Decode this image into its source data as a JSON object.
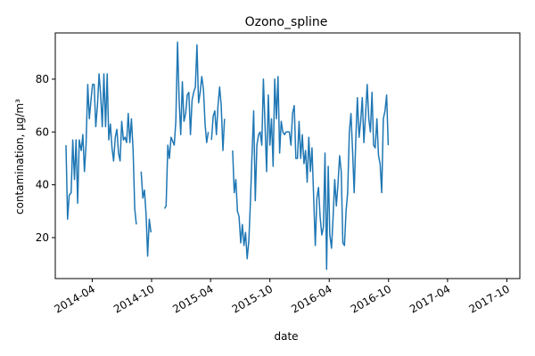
{
  "chart_data": {
    "type": "line",
    "title": "Ozono_spline",
    "xlabel": "date",
    "ylabel": "contamination, µg/m³",
    "xlim": [
      "2013-12-08",
      "2017-11-10"
    ],
    "ylim": [
      4.5,
      97.5
    ],
    "xticks": [
      {
        "date": "2014-04-01",
        "label": "2014-04"
      },
      {
        "date": "2014-10-01",
        "label": "2014-10"
      },
      {
        "date": "2015-04-01",
        "label": "2015-04"
      },
      {
        "date": "2015-10-01",
        "label": "2015-10"
      },
      {
        "date": "2016-04-01",
        "label": "2016-04"
      },
      {
        "date": "2016-10-01",
        "label": "2016-10"
      },
      {
        "date": "2017-04-01",
        "label": "2017-04"
      },
      {
        "date": "2017-10-01",
        "label": "2017-10"
      }
    ],
    "yticks": [
      20,
      40,
      60,
      80
    ],
    "grid": false,
    "line_color": "#1f77b4",
    "series": [
      {
        "segments": [
          [
            [
              "2014-01-10",
              55
            ],
            [
              "2014-01-15",
              27
            ],
            [
              "2014-01-20",
              36
            ],
            [
              "2014-01-26",
              37
            ],
            [
              "2014-01-31",
              57
            ],
            [
              "2014-02-05",
              42
            ],
            [
              "2014-02-10",
              57
            ],
            [
              "2014-02-15",
              33
            ],
            [
              "2014-02-20",
              57
            ],
            [
              "2014-02-26",
              53
            ],
            [
              "2014-03-03",
              59
            ],
            [
              "2014-03-08",
              45
            ],
            [
              "2014-03-13",
              55
            ],
            [
              "2014-03-18",
              78
            ],
            [
              "2014-03-23",
              65
            ],
            [
              "2014-03-28",
              72
            ],
            [
              "2014-04-02",
              78
            ],
            [
              "2014-04-07",
              78
            ],
            [
              "2014-04-12",
              62
            ],
            [
              "2014-04-17",
              70
            ],
            [
              "2014-04-22",
              82
            ],
            [
              "2014-04-27",
              74
            ],
            [
              "2014-05-02",
              62
            ],
            [
              "2014-05-07",
              82
            ],
            [
              "2014-05-12",
              62
            ],
            [
              "2014-05-17",
              82
            ],
            [
              "2014-05-22",
              57
            ],
            [
              "2014-05-27",
              63
            ],
            [
              "2014-06-01",
              54
            ],
            [
              "2014-06-06",
              49
            ],
            [
              "2014-06-11",
              58
            ],
            [
              "2014-06-16",
              61
            ],
            [
              "2014-06-21",
              52
            ],
            [
              "2014-06-26",
              49
            ],
            [
              "2014-07-01",
              64
            ],
            [
              "2014-07-06",
              57
            ],
            [
              "2014-07-11",
              58
            ],
            [
              "2014-07-16",
              56
            ],
            [
              "2014-07-21",
              67
            ],
            [
              "2014-07-26",
              56
            ],
            [
              "2014-07-31",
              65
            ],
            [
              "2014-08-05",
              53
            ],
            [
              "2014-08-10",
              31
            ],
            [
              "2014-08-15",
              25
            ]
          ],
          [
            [
              "2014-08-30",
              45
            ],
            [
              "2014-09-04",
              35
            ],
            [
              "2014-09-09",
              38
            ],
            [
              "2014-09-14",
              29
            ],
            [
              "2014-09-19",
              13
            ],
            [
              "2014-09-24",
              27
            ],
            [
              "2014-09-29",
              22
            ]
          ],
          [
            [
              "2014-11-10",
              31
            ],
            [
              "2014-11-15",
              32
            ],
            [
              "2014-11-20",
              55
            ],
            [
              "2014-11-25",
              50
            ],
            [
              "2014-11-30",
              58
            ],
            [
              "2014-12-10",
              55
            ],
            [
              "2014-12-15",
              64
            ],
            [
              "2014-12-20",
              94
            ],
            [
              "2014-12-25",
              72
            ],
            [
              "2014-12-30",
              59
            ],
            [
              "2015-01-04",
              79
            ],
            [
              "2015-01-09",
              64
            ],
            [
              "2015-01-14",
              67
            ],
            [
              "2015-01-19",
              74
            ],
            [
              "2015-01-24",
              75
            ],
            [
              "2015-01-29",
              59
            ],
            [
              "2015-02-03",
              72
            ],
            [
              "2015-02-08",
              75
            ],
            [
              "2015-02-13",
              77
            ],
            [
              "2015-02-18",
              93
            ],
            [
              "2015-02-23",
              71
            ],
            [
              "2015-02-28",
              75
            ],
            [
              "2015-03-05",
              81
            ],
            [
              "2015-03-10",
              76
            ],
            [
              "2015-03-15",
              63
            ],
            [
              "2015-03-20",
              56
            ],
            [
              "2015-03-25",
              60
            ]
          ],
          [
            [
              "2015-04-04",
              57
            ],
            [
              "2015-04-09",
              66
            ],
            [
              "2015-04-14",
              68
            ],
            [
              "2015-04-19",
              59
            ],
            [
              "2015-04-24",
              70
            ],
            [
              "2015-04-29",
              77
            ],
            [
              "2015-05-04",
              70
            ],
            [
              "2015-05-09",
              53
            ],
            [
              "2015-05-14",
              65
            ]
          ],
          [
            [
              "2015-06-08",
              53
            ],
            [
              "2015-06-13",
              37
            ],
            [
              "2015-06-18",
              42
            ],
            [
              "2015-06-23",
              30
            ],
            [
              "2015-06-28",
              28
            ],
            [
              "2015-07-03",
              18
            ],
            [
              "2015-07-08",
              25
            ],
            [
              "2015-07-13",
              17
            ],
            [
              "2015-07-18",
              22
            ],
            [
              "2015-07-23",
              12
            ],
            [
              "2015-07-28",
              19
            ],
            [
              "2015-08-02",
              34
            ],
            [
              "2015-08-07",
              52
            ],
            [
              "2015-08-12",
              68
            ],
            [
              "2015-08-17",
              34
            ],
            [
              "2015-08-22",
              55
            ],
            [
              "2015-08-27",
              59
            ],
            [
              "2015-09-01",
              60
            ],
            [
              "2015-09-06",
              55
            ],
            [
              "2015-09-11",
              80
            ],
            [
              "2015-09-16",
              63
            ],
            [
              "2015-09-21",
              45
            ],
            [
              "2015-09-26",
              74
            ],
            [
              "2015-10-01",
              55
            ],
            [
              "2015-10-06",
              65
            ],
            [
              "2015-10-11",
              47
            ],
            [
              "2015-10-16",
              80
            ],
            [
              "2015-10-21",
              65
            ],
            [
              "2015-10-26",
              81
            ],
            [
              "2015-10-31",
              52
            ],
            [
              "2015-11-05",
              64
            ],
            [
              "2015-11-10",
              60
            ],
            [
              "2015-11-15",
              59
            ],
            [
              "2015-11-20",
              60
            ],
            [
              "2015-11-25",
              60
            ],
            [
              "2015-11-30",
              60
            ],
            [
              "2015-12-05",
              55
            ],
            [
              "2015-12-10",
              67
            ],
            [
              "2015-12-15",
              70
            ],
            [
              "2015-12-20",
              50
            ],
            [
              "2015-12-25",
              50
            ],
            [
              "2015-12-30",
              64
            ],
            [
              "2016-01-04",
              50
            ],
            [
              "2016-01-09",
              59
            ],
            [
              "2016-01-14",
              48
            ],
            [
              "2016-01-19",
              53
            ],
            [
              "2016-01-24",
              41
            ],
            [
              "2016-01-29",
              58
            ],
            [
              "2016-02-03",
              45
            ],
            [
              "2016-02-08",
              54
            ],
            [
              "2016-02-13",
              35
            ],
            [
              "2016-02-18",
              17
            ],
            [
              "2016-02-23",
              35
            ],
            [
              "2016-02-28",
              39
            ],
            [
              "2016-03-04",
              28
            ],
            [
              "2016-03-09",
              21
            ],
            [
              "2016-03-14",
              24
            ],
            [
              "2016-03-19",
              52
            ],
            [
              "2016-03-24",
              8
            ],
            [
              "2016-03-29",
              47
            ],
            [
              "2016-04-03",
              21
            ],
            [
              "2016-04-08",
              16
            ],
            [
              "2016-04-13",
              28
            ],
            [
              "2016-04-18",
              42
            ],
            [
              "2016-04-23",
              32
            ],
            [
              "2016-04-28",
              40
            ],
            [
              "2016-05-03",
              51
            ],
            [
              "2016-05-08",
              45
            ],
            [
              "2016-05-13",
              18
            ],
            [
              "2016-05-18",
              17
            ],
            [
              "2016-05-23",
              30
            ],
            [
              "2016-05-28",
              37
            ],
            [
              "2016-06-02",
              60
            ],
            [
              "2016-06-07",
              67
            ],
            [
              "2016-06-12",
              53
            ],
            [
              "2016-06-17",
              37
            ],
            [
              "2016-06-22",
              57
            ],
            [
              "2016-06-27",
              73
            ],
            [
              "2016-07-02",
              58
            ],
            [
              "2016-07-07",
              64
            ],
            [
              "2016-07-12",
              73
            ],
            [
              "2016-07-17",
              56
            ],
            [
              "2016-07-22",
              66
            ],
            [
              "2016-07-27",
              78
            ],
            [
              "2016-08-01",
              65
            ],
            [
              "2016-08-06",
              60
            ],
            [
              "2016-08-11",
              75
            ],
            [
              "2016-08-16",
              55
            ],
            [
              "2016-08-21",
              54
            ],
            [
              "2016-08-26",
              65
            ],
            [
              "2016-08-31",
              51
            ],
            [
              "2016-09-05",
              48
            ],
            [
              "2016-09-10",
              37
            ],
            [
              "2016-09-15",
              65
            ],
            [
              "2016-09-20",
              68
            ],
            [
              "2016-09-25",
              74
            ],
            [
              "2016-09-30",
              55
            ]
          ]
        ]
      }
    ]
  }
}
